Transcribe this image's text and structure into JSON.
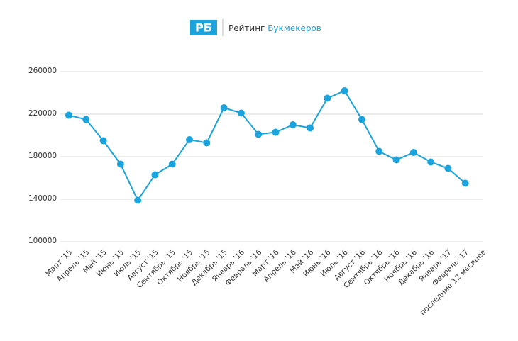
{
  "header": {
    "logo": "РБ",
    "name_dark": "Рейтинг",
    "name_blue": "Букмекеров"
  },
  "chart_data": {
    "type": "line",
    "categories": [
      "Март '15",
      "Апрель '15",
      "Май '15",
      "Июнь '15",
      "Июль '15",
      "Август '15",
      "Сентябрь '15",
      "Октябрь '15",
      "Ноябрь '15",
      "Декабрь '15",
      "Январь '16",
      "Февраль '16",
      "Март '16",
      "Апрель '16",
      "Май '16",
      "Июнь '16",
      "Июль '16",
      "Август '16",
      "Сентябрь '16",
      "Октябрь '16",
      "Ноябрь '16",
      "Декабрь '16",
      "Январь '17",
      "Февраль '17",
      "последние 12 месяцев"
    ],
    "values": [
      219000,
      215000,
      195000,
      173000,
      139000,
      163000,
      173000,
      196000,
      193000,
      226000,
      221000,
      201000,
      203000,
      210000,
      207000,
      235000,
      242000,
      215000,
      185000,
      177000,
      184000,
      175000,
      169000,
      155000,
      null
    ],
    "color": "#1aa3dc",
    "ylim": [
      100000,
      260000
    ],
    "yticks": [
      100000,
      140000,
      180000,
      220000,
      260000
    ],
    "grid": true
  }
}
